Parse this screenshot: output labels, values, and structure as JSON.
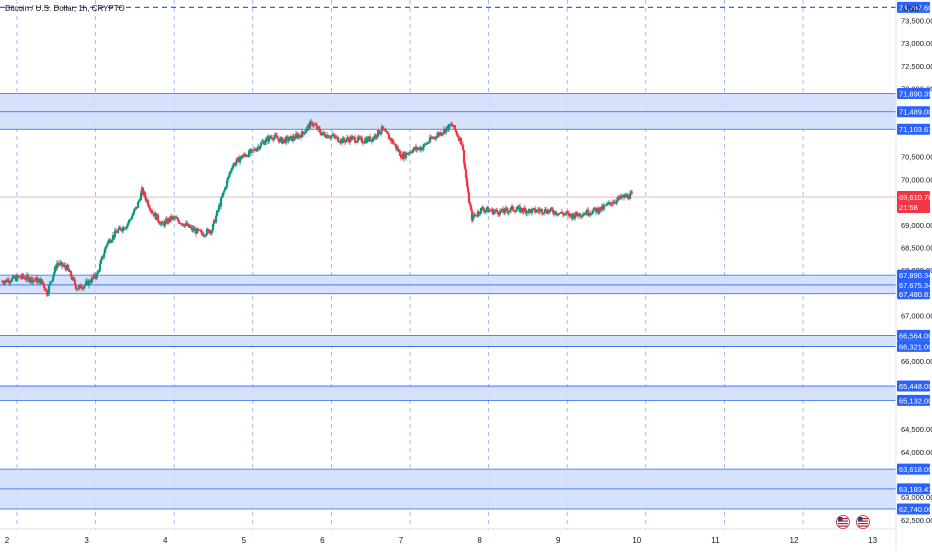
{
  "header": {
    "symbol_title": "Bitcoin / U.S. Dollar, 1h, CRYPTO",
    "currency": "USD"
  },
  "colors": {
    "up": "#089981",
    "down": "#f23645",
    "zone_fill": "#cfdcfc",
    "zone_line": "#2962ff",
    "label_bg": "#2962ff",
    "price_label_bg": "#f23645",
    "grid": "#2962ff",
    "axis_text": "#131722",
    "price_line": "#f23645"
  },
  "icons": [
    "us-flag-icon",
    "us-flag-icon"
  ],
  "chart_data": {
    "type": "candlestick",
    "x_ticks": [
      "2",
      "3",
      "4",
      "5",
      "6",
      "7",
      "8",
      "9",
      "10",
      "11",
      "12",
      "13"
    ],
    "y_ticks": [
      "73,500.00",
      "73,000.00",
      "72,500.00",
      "72,000.00",
      "70,500.00",
      "70,000.00",
      "69,000.00",
      "68,500.00",
      "68,000.00",
      "67,000.00",
      "66,000.00",
      "64,500.00",
      "64,000.00",
      "63,000.00",
      "62,500.00"
    ],
    "ylim": [
      62300,
      73950
    ],
    "dashed_level": {
      "value": 73787.6,
      "label": "73,787.60"
    },
    "zones": [
      {
        "low": 71103.67,
        "high": 71890.39
      },
      {
        "low": 67480.81,
        "high": 67890.34
      },
      {
        "low": 66321.0,
        "high": 66564.0
      },
      {
        "low": 65132.0,
        "high": 65448.0
      },
      {
        "low": 62740.0,
        "high": 63618.0
      }
    ],
    "levels": [
      {
        "value": 71890.39,
        "label": "71,890.39"
      },
      {
        "value": 71489.0,
        "label": "71,489.00"
      },
      {
        "value": 71103.67,
        "label": "71,103.67"
      },
      {
        "value": 67890.34,
        "label": "67,890.34"
      },
      {
        "value": 67675.34,
        "label": "67,675.34"
      },
      {
        "value": 67480.81,
        "label": "67,480.81"
      },
      {
        "value": 66564.0,
        "label": "66,564.00"
      },
      {
        "value": 66321.0,
        "label": "66,321.00"
      },
      {
        "value": 65448.0,
        "label": "65,448.00"
      },
      {
        "value": 65132.0,
        "label": "65,132.00"
      },
      {
        "value": 63618.0,
        "label": "63,618.00"
      },
      {
        "value": 63183.41,
        "label": "63,183.41"
      },
      {
        "value": 62740.0,
        "label": "62,740.00"
      }
    ],
    "current_price": {
      "value": 69610.78,
      "label": "69,610.78",
      "countdown": "21:58"
    },
    "candle_anchors": [
      [
        0,
        67750
      ],
      [
        10,
        67800
      ],
      [
        20,
        67850
      ],
      [
        30,
        67800
      ],
      [
        40,
        67750
      ],
      [
        45,
        67500
      ],
      [
        55,
        68150
      ],
      [
        65,
        68050
      ],
      [
        75,
        67600
      ],
      [
        85,
        67700
      ],
      [
        95,
        67900
      ],
      [
        105,
        68600
      ],
      [
        115,
        68850
      ],
      [
        125,
        69000
      ],
      [
        135,
        69400
      ],
      [
        140,
        69750
      ],
      [
        150,
        69300
      ],
      [
        160,
        69000
      ],
      [
        170,
        69150
      ],
      [
        180,
        69050
      ],
      [
        190,
        68900
      ],
      [
        200,
        68800
      ],
      [
        210,
        68900
      ],
      [
        220,
        69600
      ],
      [
        230,
        70300
      ],
      [
        240,
        70500
      ],
      [
        250,
        70600
      ],
      [
        260,
        70800
      ],
      [
        270,
        70950
      ],
      [
        280,
        70850
      ],
      [
        290,
        70900
      ],
      [
        300,
        71000
      ],
      [
        310,
        71250
      ],
      [
        320,
        71000
      ],
      [
        330,
        70950
      ],
      [
        340,
        70850
      ],
      [
        350,
        70900
      ],
      [
        360,
        70850
      ],
      [
        370,
        70900
      ],
      [
        380,
        71100
      ],
      [
        390,
        70850
      ],
      [
        400,
        70500
      ],
      [
        410,
        70650
      ],
      [
        420,
        70700
      ],
      [
        430,
        70900
      ],
      [
        440,
        71050
      ],
      [
        450,
        71200
      ],
      [
        460,
        70800
      ],
      [
        466,
        69650
      ],
      [
        470,
        69150
      ],
      [
        480,
        69350
      ],
      [
        490,
        69300
      ],
      [
        500,
        69280
      ],
      [
        510,
        69350
      ],
      [
        520,
        69330
      ],
      [
        530,
        69300
      ],
      [
        540,
        69320
      ],
      [
        550,
        69300
      ],
      [
        560,
        69250
      ],
      [
        570,
        69200
      ],
      [
        580,
        69250
      ],
      [
        590,
        69300
      ],
      [
        600,
        69350
      ],
      [
        610,
        69500
      ],
      [
        620,
        69600
      ],
      [
        630,
        69650
      ]
    ]
  }
}
